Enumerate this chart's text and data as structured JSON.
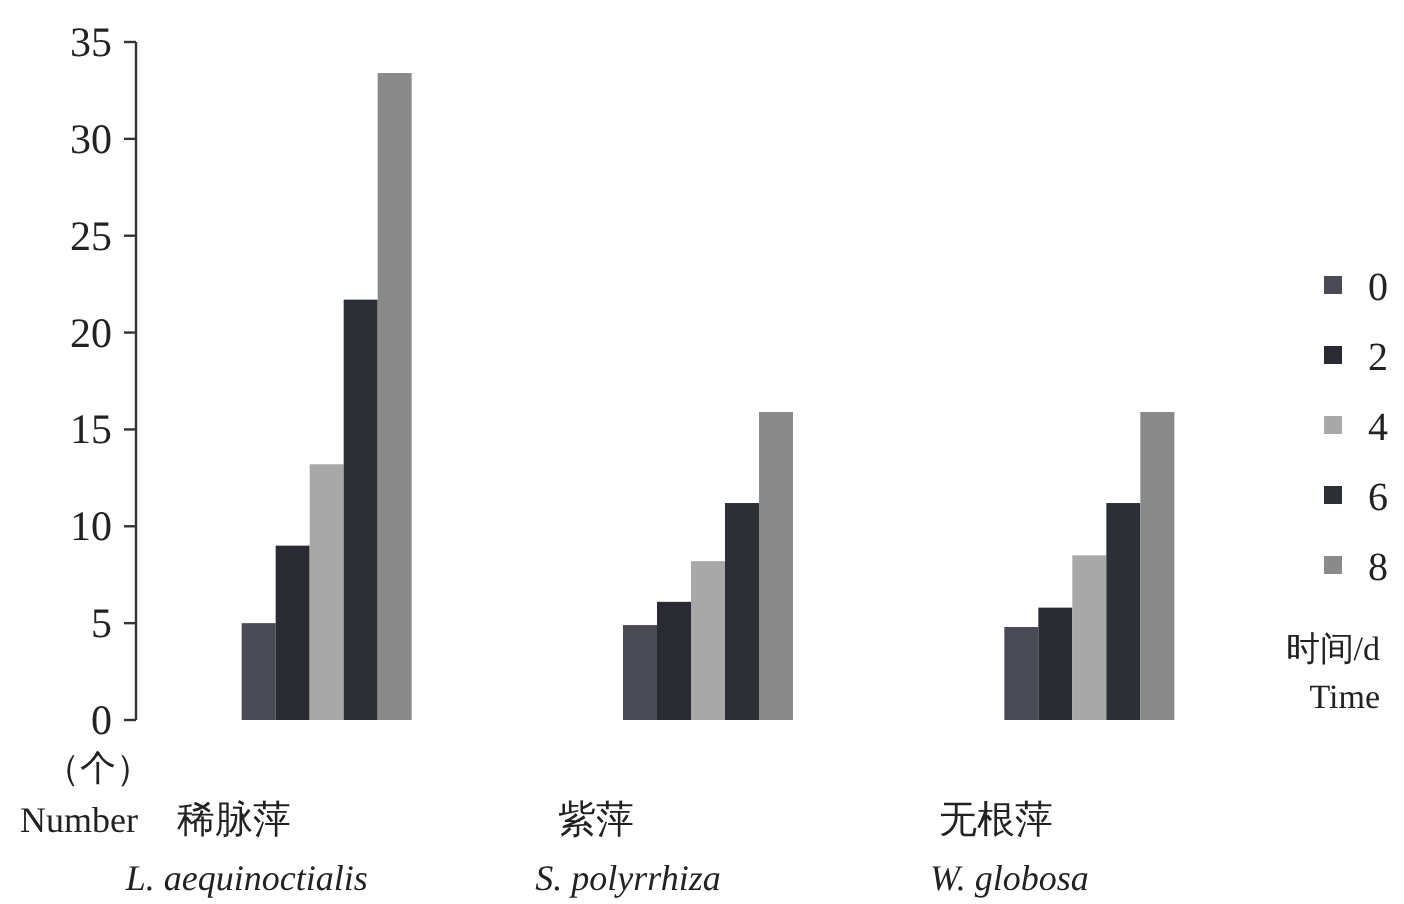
{
  "chart_data": {
    "type": "bar",
    "categories": [
      "稀脉萍\nL. aequinoctialis",
      "紫萍\nS. polyrrhiza",
      "无根萍\nW. globosa"
    ],
    "ylabel": "（个）\nNumber",
    "legend_title": "时间/d\nTime",
    "legend": "right",
    "grid": false,
    "ylim": [
      0,
      35
    ],
    "yticks": [
      0,
      5,
      10,
      15,
      20,
      25,
      30,
      35
    ],
    "series": [
      {
        "name": "0",
        "color": "#4a4a55",
        "values": [
          5,
          4.9,
          4.8
        ]
      },
      {
        "name": "2",
        "color": "#2a2a33",
        "values": [
          9,
          6.1,
          5.8
        ]
      },
      {
        "name": "4",
        "color": "#a8a8a8",
        "values": [
          13.2,
          8.2,
          8.5
        ]
      },
      {
        "name": "6",
        "color": "#2c3035",
        "values": [
          21.7,
          11.2,
          11.2
        ]
      },
      {
        "name": "8",
        "color": "#8a8a8a",
        "values": [
          33.4,
          15.9,
          15.9
        ]
      }
    ]
  }
}
